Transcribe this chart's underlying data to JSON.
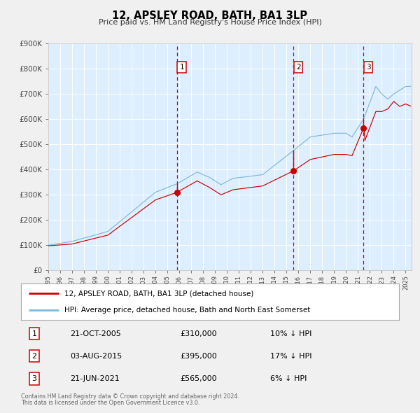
{
  "title": "12, APSLEY ROAD, BATH, BA1 3LP",
  "subtitle": "Price paid vs. HM Land Registry's House Price Index (HPI)",
  "hpi_color": "#7fb8d8",
  "price_color": "#cc0000",
  "vline_color": "#cc0000",
  "bg_color": "#ddeeff",
  "plot_bg": "#f0f0f0",
  "grid_color": "#ffffff",
  "ylim": [
    0,
    900000
  ],
  "yticks": [
    0,
    100000,
    200000,
    300000,
    400000,
    500000,
    600000,
    700000,
    800000,
    900000
  ],
  "sales": [
    {
      "num": 1,
      "date_str": "21-OCT-2005",
      "date_x": 2005.81,
      "price": 310000,
      "hpi_pct": "10% ↓ HPI"
    },
    {
      "num": 2,
      "date_str": "03-AUG-2015",
      "date_x": 2015.59,
      "price": 395000,
      "hpi_pct": "17% ↓ HPI"
    },
    {
      "num": 3,
      "date_str": "21-JUN-2021",
      "date_x": 2021.47,
      "price": 565000,
      "hpi_pct": "6% ↓ HPI"
    }
  ],
  "legend_line1": "12, APSLEY ROAD, BATH, BA1 3LP (detached house)",
  "legend_line2": "HPI: Average price, detached house, Bath and North East Somerset",
  "footnote1": "Contains HM Land Registry data © Crown copyright and database right 2024.",
  "footnote2": "This data is licensed under the Open Government Licence v3.0.",
  "xmin": 1995.0,
  "xmax": 2025.5,
  "xtick_years": [
    1995,
    1996,
    1997,
    1998,
    1999,
    2000,
    2001,
    2002,
    2003,
    2004,
    2005,
    2006,
    2007,
    2008,
    2009,
    2010,
    2011,
    2012,
    2013,
    2014,
    2015,
    2016,
    2017,
    2018,
    2019,
    2020,
    2021,
    2022,
    2023,
    2024,
    2025
  ]
}
